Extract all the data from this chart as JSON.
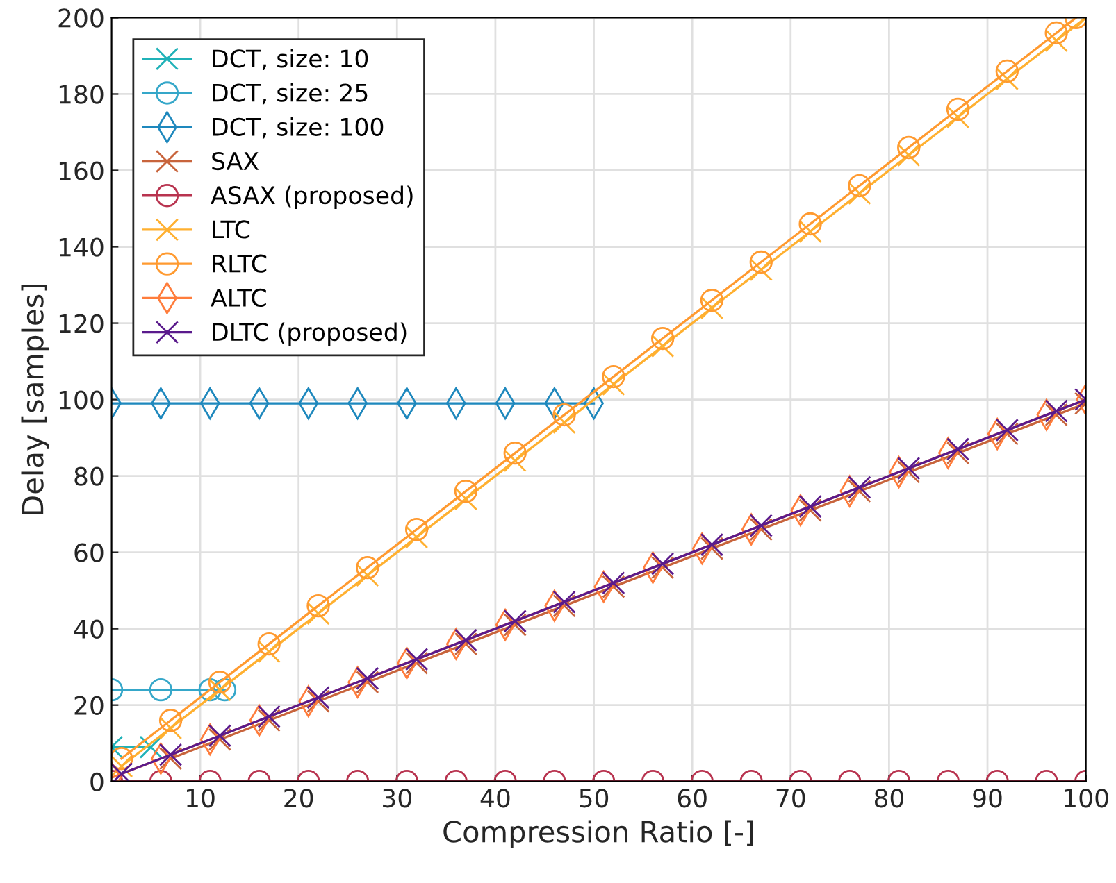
{
  "chart_data": {
    "type": "line",
    "xlabel": "Compression Ratio [-]",
    "ylabel": "Delay [samples]",
    "xlim": [
      1,
      100
    ],
    "ylim": [
      0,
      200
    ],
    "xticks": [
      10,
      20,
      30,
      40,
      50,
      60,
      70,
      80,
      90,
      100
    ],
    "yticks": [
      0,
      20,
      40,
      60,
      80,
      100,
      120,
      140,
      160,
      180,
      200
    ],
    "grid": true,
    "legend": "top left",
    "series": [
      {
        "name": "DCT, size: 10",
        "color": "#20b2b8",
        "marker": "cross",
        "x": [
          1,
          5
        ],
        "values": [
          9,
          9
        ]
      },
      {
        "name": "DCT, size: 25",
        "color": "#35a7c9",
        "marker": "circle",
        "x": [
          1,
          6,
          11,
          12.5
        ],
        "values": [
          24,
          24,
          24,
          24
        ]
      },
      {
        "name": "DCT, size: 100",
        "color": "#1e88bd",
        "marker": "diamond",
        "x": [
          1,
          6,
          11,
          16,
          21,
          26,
          31,
          36,
          41,
          46,
          50
        ],
        "values": [
          99,
          99,
          99,
          99,
          99,
          99,
          99,
          99,
          99,
          99,
          99
        ]
      },
      {
        "name": "SAX",
        "color": "#c8643c",
        "marker": "cross",
        "x": [
          7,
          12,
          17,
          22,
          27,
          32,
          37,
          42,
          47,
          52,
          57,
          62,
          67,
          72,
          77,
          82,
          87,
          92,
          97,
          100
        ],
        "values": [
          6,
          11,
          16,
          21,
          26,
          31,
          36,
          41,
          46,
          51,
          56,
          61,
          66,
          71,
          76,
          81,
          86,
          91,
          96,
          99
        ]
      },
      {
        "name": "ASAX (proposed)",
        "color": "#b8334f",
        "marker": "circle",
        "x": [
          1,
          6,
          11,
          16,
          21,
          26,
          31,
          36,
          41,
          46,
          51,
          56,
          61,
          66,
          71,
          76,
          81,
          86,
          91,
          96,
          100
        ],
        "values": [
          0,
          0,
          0,
          0,
          0,
          0,
          0,
          0,
          0,
          0,
          0,
          0,
          0,
          0,
          0,
          0,
          0,
          0,
          0,
          0,
          0
        ]
      },
      {
        "name": "LTC",
        "color": "#ffb030",
        "marker": "cross",
        "x": [
          2,
          7,
          12,
          17,
          22,
          27,
          32,
          37,
          42,
          47,
          52,
          57,
          62,
          67,
          72,
          77,
          82,
          87,
          92,
          97,
          100
        ],
        "values": [
          4,
          14,
          24,
          34,
          44,
          54,
          64,
          74,
          84,
          94,
          104,
          114,
          124,
          134,
          144,
          154,
          164,
          174,
          184,
          194,
          200
        ]
      },
      {
        "name": "RLTC",
        "color": "#ff9a30",
        "marker": "circle",
        "x": [
          2,
          7,
          12,
          17,
          22,
          27,
          32,
          37,
          42,
          47,
          52,
          57,
          62,
          67,
          72,
          77,
          82,
          87,
          92,
          97,
          99
        ],
        "values": [
          6,
          16,
          26,
          36,
          46,
          56,
          66,
          76,
          86,
          96,
          106,
          116,
          126,
          136,
          146,
          156,
          166,
          176,
          186,
          196,
          200
        ]
      },
      {
        "name": "ALTC",
        "color": "#ff7d3c",
        "marker": "diamond",
        "x": [
          1,
          6,
          11,
          16,
          21,
          26,
          31,
          36,
          41,
          46,
          51,
          56,
          61,
          66,
          71,
          76,
          81,
          86,
          91,
          96,
          100
        ],
        "values": [
          1,
          6,
          11,
          16,
          21,
          26,
          31,
          36,
          41,
          46,
          51,
          56,
          61,
          66,
          71,
          76,
          81,
          86,
          91,
          96,
          100
        ]
      },
      {
        "name": "DLTC (proposed)",
        "color": "#5a1a8c",
        "marker": "cross",
        "x": [
          2,
          7,
          12,
          17,
          22,
          27,
          32,
          37,
          42,
          47,
          52,
          57,
          62,
          67,
          72,
          77,
          82,
          87,
          92,
          97,
          100
        ],
        "values": [
          2,
          7,
          12,
          17,
          22,
          27,
          32,
          37,
          42,
          47,
          52,
          57,
          62,
          67,
          72,
          77,
          82,
          87,
          92,
          97,
          100
        ]
      }
    ]
  }
}
